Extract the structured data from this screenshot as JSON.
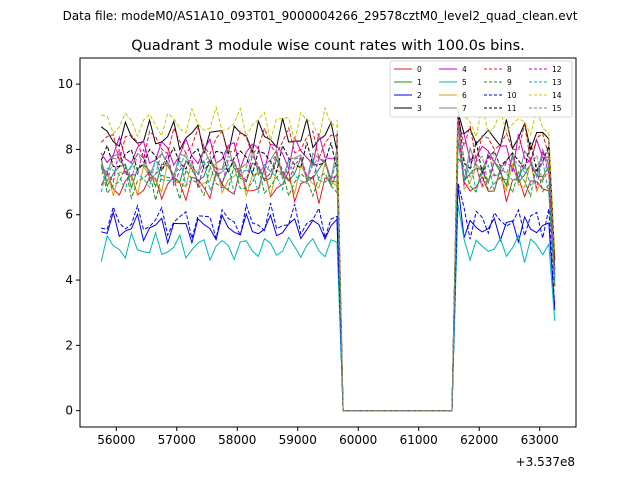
{
  "header": {
    "data_file": "Data file: modeM0/AS1A10_093T01_9000004266_29578cztM0_level2_quad_clean.evt"
  },
  "chart_data": {
    "type": "line",
    "title": "Quadrant 3 module wise count rates with 100.0s bins.",
    "xlabel": "",
    "ylabel": "",
    "x_offset_label": "+3.537e8",
    "xlim": [
      55400,
      63600
    ],
    "ylim": [
      -0.5,
      10.8
    ],
    "x_ticks": [
      56000,
      57000,
      58000,
      59000,
      60000,
      61000,
      62000,
      63000
    ],
    "x_tick_labels": [
      "56000",
      "57000",
      "58000",
      "59000",
      "60000",
      "61000",
      "62000",
      "63000"
    ],
    "y_ticks": [
      0,
      2,
      4,
      6,
      8,
      10
    ],
    "y_tick_labels": [
      "0",
      "2",
      "4",
      "6",
      "8",
      "10"
    ],
    "legend_position": "top-right",
    "segments": [
      {
        "start": 55750,
        "end": 59650
      },
      {
        "start": 61650,
        "end": 63250
      }
    ],
    "gap": {
      "start": 59750,
      "end": 61550,
      "value": 0
    },
    "series": [
      {
        "name": "0",
        "color": "#e41a1c",
        "dash": "solid",
        "level": 6.9,
        "amp": 0.35
      },
      {
        "name": "1",
        "color": "#228b22",
        "dash": "solid",
        "level": 7.3,
        "amp": 0.35
      },
      {
        "name": "2",
        "color": "#0000ee",
        "dash": "solid",
        "level": 5.6,
        "amp": 0.3
      },
      {
        "name": "3",
        "color": "#000000",
        "dash": "solid",
        "level": 8.4,
        "amp": 0.35
      },
      {
        "name": "4",
        "color": "#cc00cc",
        "dash": "solid",
        "level": 7.9,
        "amp": 0.4
      },
      {
        "name": "5",
        "color": "#00b5b5",
        "dash": "solid",
        "level": 5.0,
        "amp": 0.3
      },
      {
        "name": "6",
        "color": "#d4a017",
        "dash": "solid",
        "level": 7.1,
        "amp": 0.35
      },
      {
        "name": "7",
        "color": "#808080",
        "dash": "solid",
        "level": 7.6,
        "amp": 0.35
      },
      {
        "name": "8",
        "color": "#e41a1c",
        "dash": "dashed",
        "level": 8.2,
        "amp": 0.4
      },
      {
        "name": "9",
        "color": "#228b22",
        "dash": "dashed",
        "level": 7.0,
        "amp": 0.35
      },
      {
        "name": "10",
        "color": "#0000ee",
        "dash": "dashed",
        "level": 5.8,
        "amp": 0.35
      },
      {
        "name": "11",
        "color": "#000000",
        "dash": "dashed",
        "level": 7.7,
        "amp": 0.35
      },
      {
        "name": "12",
        "color": "#cc00cc",
        "dash": "dashed",
        "level": 7.4,
        "amp": 0.4
      },
      {
        "name": "13",
        "color": "#00b5b5",
        "dash": "dashed",
        "level": 7.2,
        "amp": 0.35
      },
      {
        "name": "14",
        "color": "#c8c800",
        "dash": "dashed",
        "level": 8.8,
        "amp": 0.35
      },
      {
        "name": "15",
        "color": "#808080",
        "dash": "dashed",
        "level": 7.5,
        "amp": 0.35
      }
    ]
  }
}
